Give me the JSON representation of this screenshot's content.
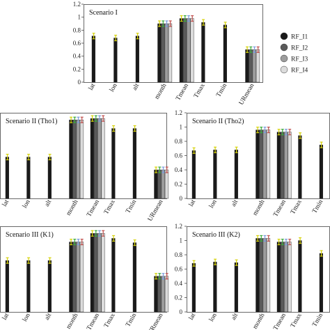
{
  "legend": [
    {
      "name": "RF_I1",
      "color": "#1a1a1a"
    },
    {
      "name": "RF_I2",
      "color": "#5a5a5a"
    },
    {
      "name": "RF_I3",
      "color": "#9d9d9d"
    },
    {
      "name": "RF_I4",
      "color": "#dcdcdc"
    }
  ],
  "error_bar_colors": [
    "#d6d20a",
    "#3caa3c",
    "#7a9bdc",
    "#c0504d"
  ],
  "chart_data": [
    {
      "type": "bar",
      "title": "Scenario I",
      "categories": [
        "lat",
        "lon",
        "alt",
        "month",
        "Tmean",
        "Tmax",
        "Tmin",
        "URmean"
      ],
      "ylim": [
        0,
        1.2
      ],
      "yticks": [
        "0",
        "0.2",
        "0.4",
        "0.6",
        "0.8",
        "1",
        "1.2"
      ],
      "series": [
        {
          "name": "RF_I1",
          "values": [
            0.71,
            0.68,
            0.71,
            0.9,
            0.98,
            0.92,
            0.88,
            0.5
          ]
        },
        {
          "name": "RF_I2",
          "values": [
            null,
            null,
            null,
            0.9,
            0.98,
            null,
            null,
            0.5
          ]
        },
        {
          "name": "RF_I3",
          "values": [
            null,
            null,
            null,
            0.9,
            0.98,
            null,
            null,
            0.5
          ]
        },
        {
          "name": "RF_I4",
          "values": [
            null,
            null,
            null,
            0.9,
            0.98,
            null,
            null,
            0.5
          ]
        }
      ]
    },
    {
      "type": "bar",
      "title": "Scenario II (Tho1)",
      "categories": [
        "lat",
        "lon",
        "alt",
        "month",
        "Tmean",
        "Tmax",
        "Tmin",
        "URmean"
      ],
      "ylim": [
        0,
        1.2
      ],
      "yticks": [],
      "series": [
        {
          "name": "RF_I1",
          "values": [
            0.58,
            0.58,
            0.58,
            1.1,
            1.12,
            0.98,
            0.98,
            0.4
          ]
        },
        {
          "name": "RF_I2",
          "values": [
            null,
            null,
            null,
            1.1,
            1.12,
            null,
            null,
            0.4
          ]
        },
        {
          "name": "RF_I3",
          "values": [
            null,
            null,
            null,
            1.1,
            1.12,
            null,
            null,
            0.4
          ]
        },
        {
          "name": "RF_I4",
          "values": [
            null,
            null,
            null,
            1.1,
            1.12,
            null,
            null,
            0.4
          ]
        }
      ]
    },
    {
      "type": "bar",
      "title": "Scenario II (Tho2)",
      "categories": [
        "lat",
        "lon",
        "alt",
        "month",
        "Tmean",
        "Tmax",
        "Tmin"
      ],
      "ylim": [
        0,
        1.2
      ],
      "yticks": [
        "0",
        "0.2",
        "0.4",
        "0.6",
        "0.8",
        "1",
        "1.2"
      ],
      "series": [
        {
          "name": "RF_I1",
          "values": [
            0.67,
            0.68,
            0.68,
            0.96,
            0.93,
            0.88,
            0.75
          ]
        },
        {
          "name": "RF_I2",
          "values": [
            null,
            null,
            null,
            0.96,
            0.93,
            null,
            null
          ]
        },
        {
          "name": "RF_I3",
          "values": [
            null,
            null,
            null,
            0.96,
            0.93,
            null,
            null
          ]
        },
        {
          "name": "RF_I4",
          "values": [
            null,
            null,
            null,
            0.96,
            0.93,
            null,
            null
          ]
        }
      ]
    },
    {
      "type": "bar",
      "title": "Scenario III (K1)",
      "categories": [
        "lat",
        "lon",
        "alt",
        "month",
        "Tmean",
        "Tmax",
        "Tmin",
        "URmean"
      ],
      "ylim": [
        0,
        1.2
      ],
      "yticks": [],
      "series": [
        {
          "name": "RF_I1",
          "values": [
            0.72,
            0.72,
            0.72,
            0.98,
            1.1,
            1.03,
            0.97,
            0.5
          ]
        },
        {
          "name": "RF_I2",
          "values": [
            null,
            null,
            null,
            0.98,
            1.1,
            null,
            null,
            0.5
          ]
        },
        {
          "name": "RF_I3",
          "values": [
            null,
            null,
            null,
            0.98,
            1.1,
            null,
            null,
            0.5
          ]
        },
        {
          "name": "RF_I4",
          "values": [
            null,
            null,
            null,
            0.98,
            1.1,
            null,
            null,
            0.5
          ]
        }
      ]
    },
    {
      "type": "bar",
      "title": "Scenario III (K2)",
      "categories": [
        "lat",
        "lon",
        "alt",
        "month",
        "Tmean",
        "Tmax",
        "Tmin"
      ],
      "ylim": [
        0,
        1.2
      ],
      "yticks": [
        "0",
        "0.2",
        "0.4",
        "0.6",
        "0.8",
        "1",
        "1.2"
      ],
      "series": [
        {
          "name": "RF_I1",
          "values": [
            0.68,
            0.7,
            0.69,
            1.03,
            0.98,
            1.0,
            0.82
          ]
        },
        {
          "name": "RF_I2",
          "values": [
            null,
            null,
            null,
            1.03,
            0.98,
            null,
            null
          ]
        },
        {
          "name": "RF_I3",
          "values": [
            null,
            null,
            null,
            1.03,
            0.98,
            null,
            null
          ]
        },
        {
          "name": "RF_I4",
          "values": [
            null,
            null,
            null,
            1.03,
            0.98,
            null,
            null
          ]
        }
      ]
    }
  ]
}
